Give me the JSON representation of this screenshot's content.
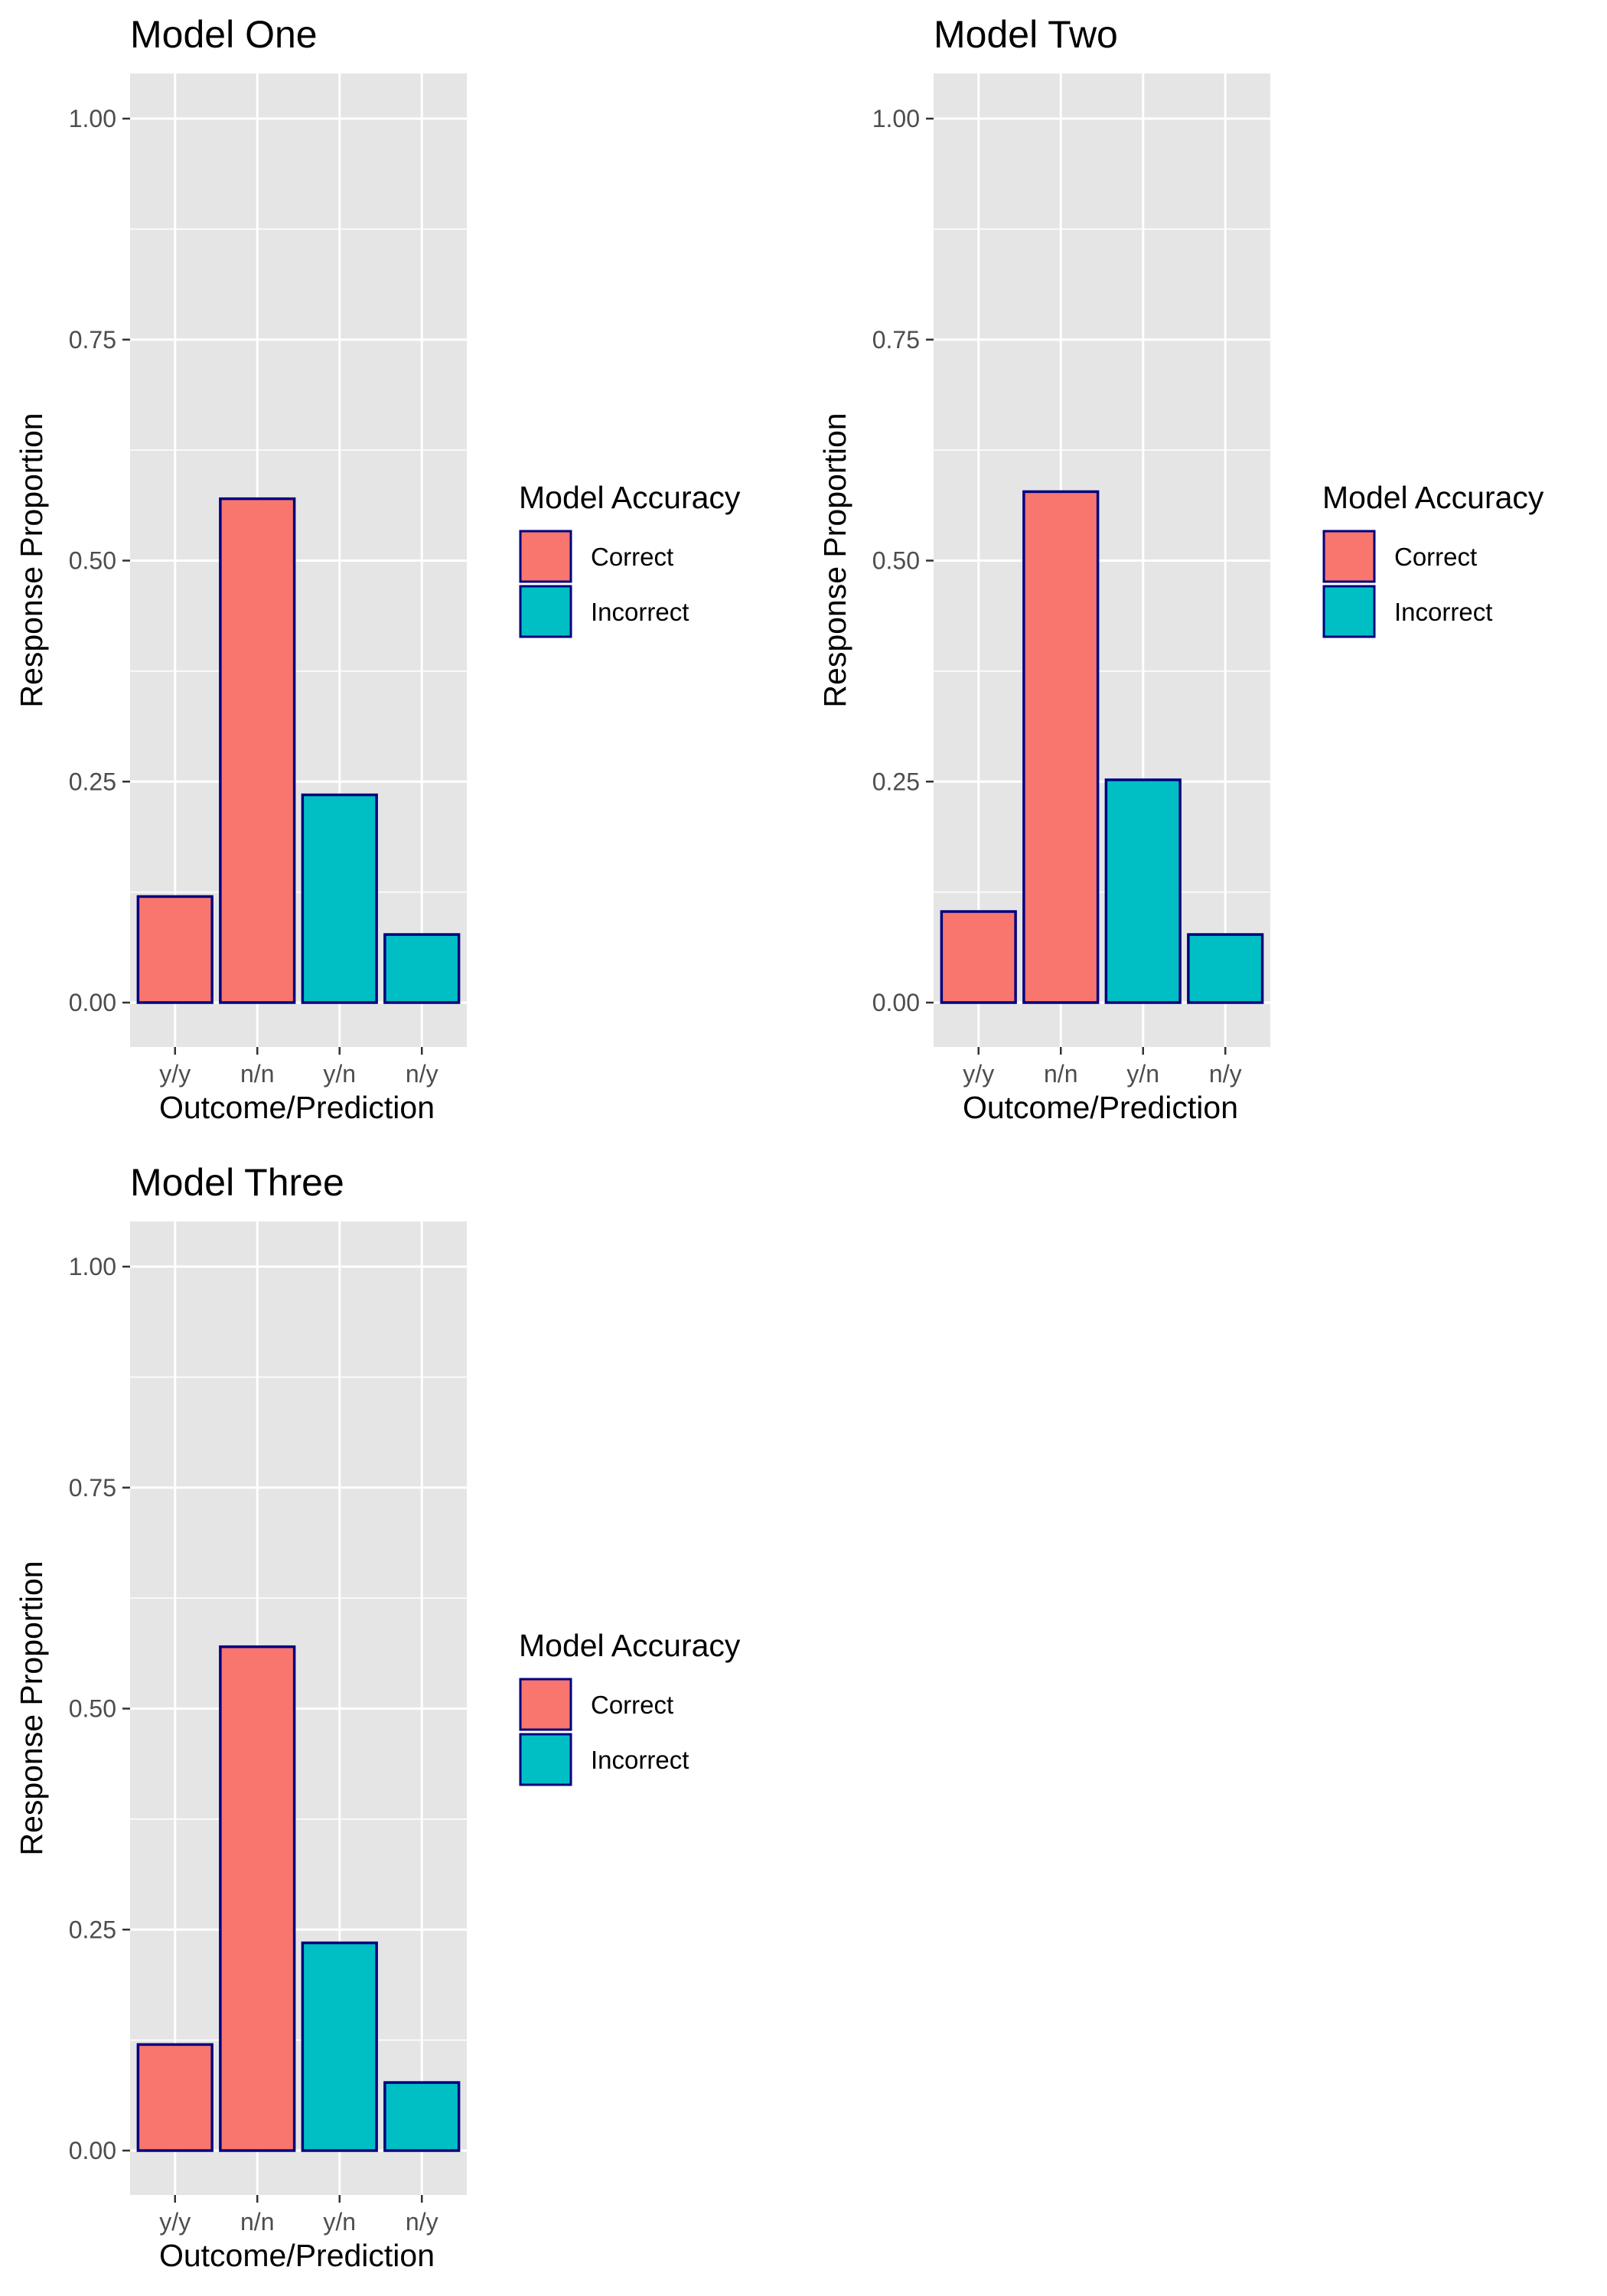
{
  "figure": {
    "legend": {
      "title": "Model Accuracy",
      "entries": [
        {
          "label": "Correct",
          "color": "#F8766D"
        },
        {
          "label": "Incorrect",
          "color": "#00BFC4"
        }
      ]
    },
    "colors": {
      "panel_background": "#E5E5E5",
      "grid": "#FFFFFF",
      "bar_outline": "#000080",
      "correct": "#F8766D",
      "incorrect": "#00BFC4"
    }
  },
  "chart_data": [
    {
      "type": "bar",
      "title": "Model One",
      "xlabel": "Outcome/Prediction",
      "ylabel": "Response Proportion",
      "ylim": [
        0,
        1
      ],
      "yticks": [
        "0.00",
        "0.25",
        "0.50",
        "0.75",
        "1.00"
      ],
      "categories": [
        "y/y",
        "n/n",
        "y/n",
        "n/y"
      ],
      "values": [
        0.12,
        0.57,
        0.235,
        0.077
      ],
      "accuracy": [
        "Correct",
        "Correct",
        "Incorrect",
        "Incorrect"
      ],
      "legend_position": "right"
    },
    {
      "type": "bar",
      "title": "Model Two",
      "xlabel": "Outcome/Prediction",
      "ylabel": "Response Proportion",
      "ylim": [
        0,
        1
      ],
      "yticks": [
        "0.00",
        "0.25",
        "0.50",
        "0.75",
        "1.00"
      ],
      "categories": [
        "y/y",
        "n/n",
        "y/n",
        "n/y"
      ],
      "values": [
        0.103,
        0.578,
        0.252,
        0.077
      ],
      "accuracy": [
        "Correct",
        "Correct",
        "Incorrect",
        "Incorrect"
      ],
      "legend_position": "right"
    },
    {
      "type": "bar",
      "title": "Model Three",
      "xlabel": "Outcome/Prediction",
      "ylabel": "Response Proportion",
      "ylim": [
        0,
        1
      ],
      "yticks": [
        "0.00",
        "0.25",
        "0.50",
        "0.75",
        "1.00"
      ],
      "categories": [
        "y/y",
        "n/n",
        "y/n",
        "n/y"
      ],
      "values": [
        0.12,
        0.57,
        0.235,
        0.077
      ],
      "accuracy": [
        "Correct",
        "Correct",
        "Incorrect",
        "Incorrect"
      ],
      "legend_position": "right"
    }
  ]
}
